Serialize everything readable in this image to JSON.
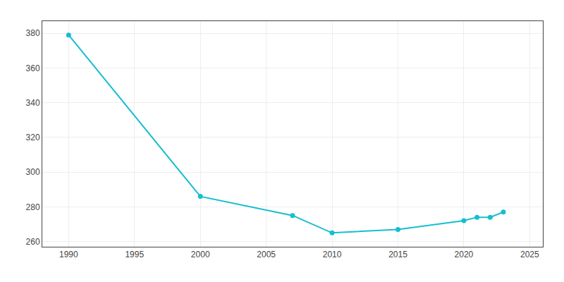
{
  "chart_data": {
    "type": "line",
    "x": [
      1990,
      2000,
      2007,
      2010,
      2015,
      2020,
      2021,
      2022,
      2023
    ],
    "values": [
      379,
      286,
      275,
      265,
      267,
      272,
      274,
      274,
      277
    ],
    "color": "#17BECF",
    "marker": "circle",
    "xlim": [
      1988,
      2026
    ],
    "ylim": [
      257,
      387
    ],
    "xticks": [
      1990,
      1995,
      2000,
      2005,
      2010,
      2015,
      2020,
      2025
    ],
    "yticks": [
      260,
      280,
      300,
      320,
      340,
      360,
      380
    ],
    "grid": true
  }
}
